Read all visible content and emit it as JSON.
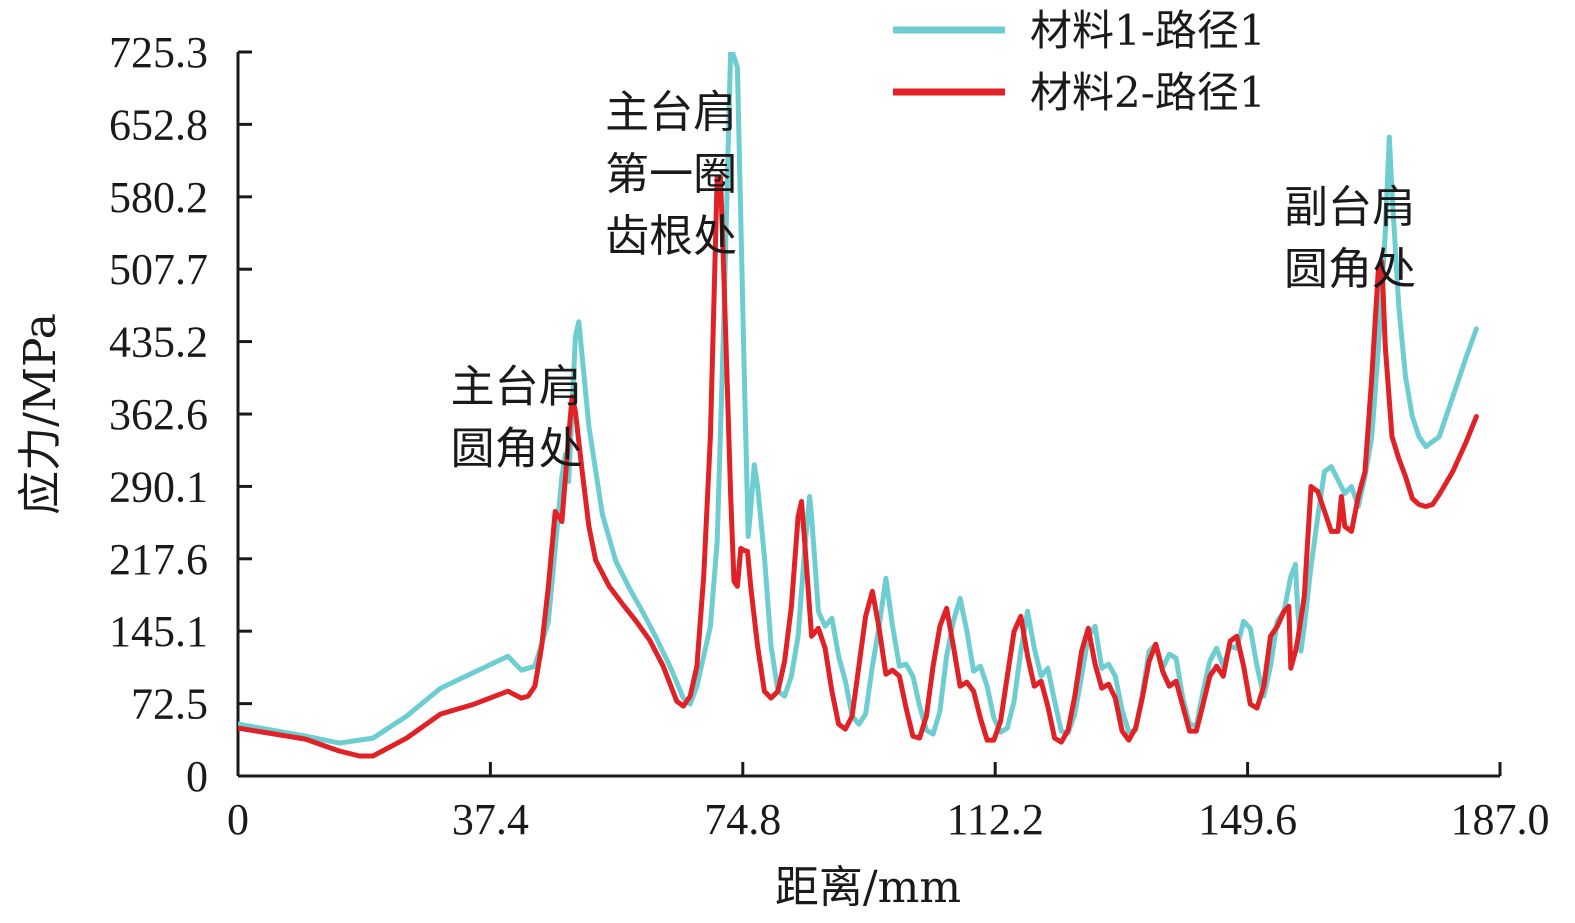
{
  "chart_data": {
    "type": "line",
    "xlabel": "距离/mm",
    "ylabel": "应力/MPa",
    "xlim": [
      0,
      187.0
    ],
    "ylim": [
      0,
      725.3
    ],
    "x_ticks": [
      "0",
      "37.4",
      "74.8",
      "112.2",
      "149.6",
      "187.0"
    ],
    "y_ticks": [
      "0",
      "72.5",
      "145.1",
      "217.6",
      "290.1",
      "362.6",
      "435.2",
      "507.7",
      "580.2",
      "652.8",
      "725.3"
    ],
    "grid": false,
    "legend_position": "top-right",
    "annotations": [
      {
        "lines": [
          "主台肩",
          "圆角处"
        ],
        "x": 31.5,
        "y": 375
      },
      {
        "lines": [
          "主台肩",
          "第一圈",
          "齿根处"
        ],
        "x": 54.4,
        "y": 650
      },
      {
        "lines": [
          "副台肩",
          "圆角处"
        ],
        "x": 155.0,
        "y": 555
      }
    ],
    "series": [
      {
        "name": "材料1-路径1",
        "color": "#6ecdd0",
        "points": [
          [
            0,
            52
          ],
          [
            10,
            40
          ],
          [
            15,
            33
          ],
          [
            20,
            38
          ],
          [
            25,
            60
          ],
          [
            30,
            88
          ],
          [
            35,
            104
          ],
          [
            40,
            120
          ],
          [
            42,
            106
          ],
          [
            44,
            110
          ],
          [
            46,
            155
          ],
          [
            48,
            300
          ],
          [
            48.5,
            322
          ],
          [
            49,
            295
          ],
          [
            50,
            440
          ],
          [
            50.5,
            455
          ],
          [
            51,
            420
          ],
          [
            52,
            350
          ],
          [
            54,
            262
          ],
          [
            56,
            215
          ],
          [
            58,
            188
          ],
          [
            60,
            164
          ],
          [
            62,
            138
          ],
          [
            64,
            110
          ],
          [
            66,
            78
          ],
          [
            67,
            72
          ],
          [
            68,
            90
          ],
          [
            70,
            150
          ],
          [
            71,
            235
          ],
          [
            72,
            460
          ],
          [
            73,
            730
          ],
          [
            74,
            710
          ],
          [
            75,
            410
          ],
          [
            75.6,
            240
          ],
          [
            76,
            270
          ],
          [
            76.5,
            312
          ],
          [
            77,
            290
          ],
          [
            78,
            220
          ],
          [
            79,
            130
          ],
          [
            80,
            85
          ],
          [
            81,
            80
          ],
          [
            82,
            100
          ],
          [
            83,
            140
          ],
          [
            84,
            230
          ],
          [
            84.7,
            280
          ],
          [
            85,
            260
          ],
          [
            86,
            165
          ],
          [
            87,
            150
          ],
          [
            88,
            158
          ],
          [
            89,
            120
          ],
          [
            90,
            95
          ],
          [
            91,
            60
          ],
          [
            92,
            52
          ],
          [
            93,
            62
          ],
          [
            94,
            110
          ],
          [
            95,
            150
          ],
          [
            96,
            198
          ],
          [
            97,
            150
          ],
          [
            98,
            110
          ],
          [
            99,
            112
          ],
          [
            100,
            100
          ],
          [
            101,
            70
          ],
          [
            102,
            46
          ],
          [
            103,
            42
          ],
          [
            104,
            65
          ],
          [
            105,
            120
          ],
          [
            106,
            155
          ],
          [
            107,
            178
          ],
          [
            108,
            145
          ],
          [
            109,
            105
          ],
          [
            110,
            110
          ],
          [
            111,
            90
          ],
          [
            112,
            58
          ],
          [
            113,
            44
          ],
          [
            114,
            48
          ],
          [
            115,
            75
          ],
          [
            116,
            125
          ],
          [
            117,
            165
          ],
          [
            118,
            128
          ],
          [
            119,
            100
          ],
          [
            120,
            108
          ],
          [
            121,
            75
          ],
          [
            122,
            45
          ],
          [
            123,
            43
          ],
          [
            124,
            62
          ],
          [
            125,
            100
          ],
          [
            126,
            140
          ],
          [
            127,
            150
          ],
          [
            128,
            108
          ],
          [
            129,
            112
          ],
          [
            130,
            100
          ],
          [
            131,
            66
          ],
          [
            132,
            44
          ],
          [
            133,
            46
          ],
          [
            134,
            82
          ],
          [
            135,
            125
          ],
          [
            136,
            132
          ],
          [
            137,
            108
          ],
          [
            138,
            122
          ],
          [
            139,
            118
          ],
          [
            140,
            78
          ],
          [
            141,
            52
          ],
          [
            142,
            50
          ],
          [
            143,
            85
          ],
          [
            144,
            115
          ],
          [
            145,
            128
          ],
          [
            146,
            110
          ],
          [
            147,
            130
          ],
          [
            148,
            128
          ],
          [
            149,
            155
          ],
          [
            150,
            148
          ],
          [
            151,
            110
          ],
          [
            152,
            80
          ],
          [
            153,
            110
          ],
          [
            154,
            155
          ],
          [
            155,
            165
          ],
          [
            156,
            200
          ],
          [
            156.7,
            212
          ],
          [
            157,
            170
          ],
          [
            157.5,
            125
          ],
          [
            158,
            150
          ],
          [
            159,
            210
          ],
          [
            160,
            260
          ],
          [
            161,
            305
          ],
          [
            162,
            310
          ],
          [
            164,
            283
          ],
          [
            165,
            290
          ],
          [
            166,
            270
          ],
          [
            167,
            300
          ],
          [
            168,
            340
          ],
          [
            169,
            430
          ],
          [
            170,
            545
          ],
          [
            170.6,
            640
          ],
          [
            171,
            585
          ],
          [
            172,
            470
          ],
          [
            173,
            400
          ],
          [
            174,
            360
          ],
          [
            175,
            340
          ],
          [
            176,
            330
          ],
          [
            177,
            335
          ],
          [
            178,
            340
          ],
          [
            180,
            380
          ],
          [
            182,
            420
          ],
          [
            183.5,
            448
          ]
        ]
      },
      {
        "name": "材料2-路径1",
        "color": "#e02226",
        "points": [
          [
            0,
            48
          ],
          [
            10,
            37
          ],
          [
            15,
            25
          ],
          [
            18,
            20
          ],
          [
            20,
            20
          ],
          [
            25,
            38
          ],
          [
            30,
            62
          ],
          [
            35,
            72
          ],
          [
            40,
            85
          ],
          [
            42,
            78
          ],
          [
            43,
            80
          ],
          [
            44,
            90
          ],
          [
            45,
            130
          ],
          [
            46,
            190
          ],
          [
            47,
            265
          ],
          [
            47.5,
            260
          ],
          [
            48,
            255
          ],
          [
            49,
            340
          ],
          [
            49.5,
            380
          ],
          [
            50,
            365
          ],
          [
            51,
            305
          ],
          [
            52,
            250
          ],
          [
            53,
            216
          ],
          [
            55,
            190
          ],
          [
            57,
            172
          ],
          [
            59,
            155
          ],
          [
            61,
            136
          ],
          [
            63,
            110
          ],
          [
            65,
            75
          ],
          [
            66,
            70
          ],
          [
            67,
            80
          ],
          [
            68,
            110
          ],
          [
            69,
            200
          ],
          [
            70,
            340
          ],
          [
            71,
            600
          ],
          [
            71.5,
            600
          ],
          [
            72,
            500
          ],
          [
            73,
            280
          ],
          [
            73.5,
            195
          ],
          [
            74,
            190
          ],
          [
            74.5,
            228
          ],
          [
            75,
            226
          ],
          [
            75.5,
            225
          ],
          [
            76,
            188
          ],
          [
            77,
            130
          ],
          [
            78,
            85
          ],
          [
            79,
            78
          ],
          [
            80,
            85
          ],
          [
            81,
            115
          ],
          [
            82,
            170
          ],
          [
            83,
            260
          ],
          [
            83.5,
            275
          ],
          [
            84,
            232
          ],
          [
            85,
            140
          ],
          [
            86,
            148
          ],
          [
            87,
            128
          ],
          [
            88,
            85
          ],
          [
            89,
            52
          ],
          [
            90,
            47
          ],
          [
            91,
            60
          ],
          [
            92,
            110
          ],
          [
            93,
            160
          ],
          [
            94,
            185
          ],
          [
            95,
            148
          ],
          [
            96,
            102
          ],
          [
            97,
            106
          ],
          [
            98,
            100
          ],
          [
            99,
            68
          ],
          [
            100,
            40
          ],
          [
            101,
            38
          ],
          [
            102,
            60
          ],
          [
            103,
            110
          ],
          [
            104,
            150
          ],
          [
            105,
            168
          ],
          [
            106,
            130
          ],
          [
            107,
            90
          ],
          [
            108,
            94
          ],
          [
            109,
            85
          ],
          [
            110,
            58
          ],
          [
            111,
            36
          ],
          [
            112,
            36
          ],
          [
            113,
            55
          ],
          [
            114,
            100
          ],
          [
            115,
            145
          ],
          [
            116,
            160
          ],
          [
            117,
            120
          ],
          [
            118,
            90
          ],
          [
            119,
            95
          ],
          [
            120,
            70
          ],
          [
            121,
            38
          ],
          [
            122,
            34
          ],
          [
            123,
            46
          ],
          [
            124,
            80
          ],
          [
            125,
            125
          ],
          [
            126,
            148
          ],
          [
            127,
            112
          ],
          [
            128,
            88
          ],
          [
            129,
            92
          ],
          [
            130,
            78
          ],
          [
            131,
            45
          ],
          [
            132,
            36
          ],
          [
            133,
            48
          ],
          [
            134,
            78
          ],
          [
            135,
            115
          ],
          [
            136,
            132
          ],
          [
            137,
            105
          ],
          [
            138,
            90
          ],
          [
            139,
            95
          ],
          [
            140,
            70
          ],
          [
            141,
            45
          ],
          [
            142,
            45
          ],
          [
            143,
            72
          ],
          [
            144,
            100
          ],
          [
            145,
            110
          ],
          [
            146,
            100
          ],
          [
            147,
            135
          ],
          [
            148,
            140
          ],
          [
            149,
            110
          ],
          [
            150,
            72
          ],
          [
            151,
            68
          ],
          [
            152,
            90
          ],
          [
            153,
            140
          ],
          [
            154,
            150
          ],
          [
            155,
            165
          ],
          [
            155.7,
            170
          ],
          [
            156,
            108
          ],
          [
            156.7,
            125
          ],
          [
            157,
            135
          ],
          [
            158,
            180
          ],
          [
            159,
            290
          ],
          [
            160,
            285
          ],
          [
            162,
            245
          ],
          [
            163,
            245
          ],
          [
            163.5,
            280
          ],
          [
            164,
            250
          ],
          [
            165,
            245
          ],
          [
            166,
            280
          ],
          [
            167,
            305
          ],
          [
            168,
            400
          ],
          [
            169,
            510
          ],
          [
            169.5,
            515
          ],
          [
            170,
            430
          ],
          [
            171,
            340
          ],
          [
            172,
            318
          ],
          [
            173,
            300
          ],
          [
            174,
            278
          ],
          [
            175,
            272
          ],
          [
            176,
            270
          ],
          [
            177,
            272
          ],
          [
            178,
            282
          ],
          [
            180,
            305
          ],
          [
            182,
            335
          ],
          [
            183.5,
            360
          ]
        ]
      }
    ]
  }
}
